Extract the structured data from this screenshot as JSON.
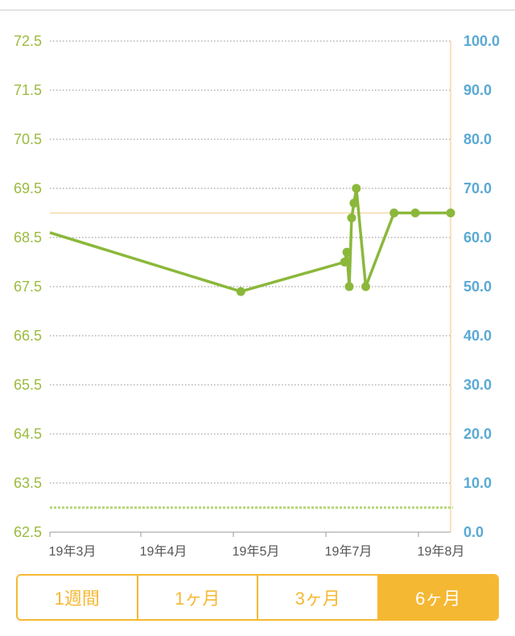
{
  "chart_data": {
    "type": "line",
    "left_axis": {
      "ticks": [
        "72.5",
        "71.5",
        "70.5",
        "69.5",
        "68.5",
        "67.5",
        "66.5",
        "65.5",
        "64.5",
        "63.5",
        "62.5"
      ],
      "range": [
        62.5,
        72.5
      ]
    },
    "right_axis": {
      "ticks": [
        "100.0",
        "90.0",
        "80.0",
        "70.0",
        "60.0",
        "50.0",
        "40.0",
        "30.0",
        "20.0",
        "10.0",
        "0.0"
      ],
      "range": [
        0,
        100
      ]
    },
    "x_tick_labels": [
      "19年3月",
      "19年4月",
      "19年5月",
      "19年7月",
      "19年8月"
    ],
    "grid": true,
    "goal_line": 69.0,
    "lower_dashed_line": 63.0,
    "colors": {
      "series": "#8bb83b",
      "goal": "#f7d8a8",
      "left_axis": "#9bbb3f",
      "right_axis": "#5aa9d3",
      "accent": "#f5b833"
    },
    "series": [
      {
        "x": [
          "2019-02-26",
          "2019-05-18",
          "2019-07-01",
          "2019-07-02",
          "2019-07-03",
          "2019-07-04",
          "2019-07-05",
          "2019-07-06",
          "2019-07-10",
          "2019-07-22",
          "2019-07-31",
          "2019-08-15"
        ],
        "y": [
          68.6,
          67.4,
          68.0,
          68.2,
          67.5,
          68.9,
          69.2,
          69.5,
          67.5,
          69.0,
          69.0,
          69.0
        ],
        "markers": [
          false,
          true,
          true,
          true,
          true,
          true,
          true,
          true,
          true,
          true,
          true,
          true
        ]
      }
    ]
  },
  "periods": {
    "items": [
      {
        "label": "1週間",
        "active": false
      },
      {
        "label": "1ヶ月",
        "active": false
      },
      {
        "label": "3ヶ月",
        "active": false
      },
      {
        "label": "6ヶ月",
        "active": true
      }
    ]
  }
}
